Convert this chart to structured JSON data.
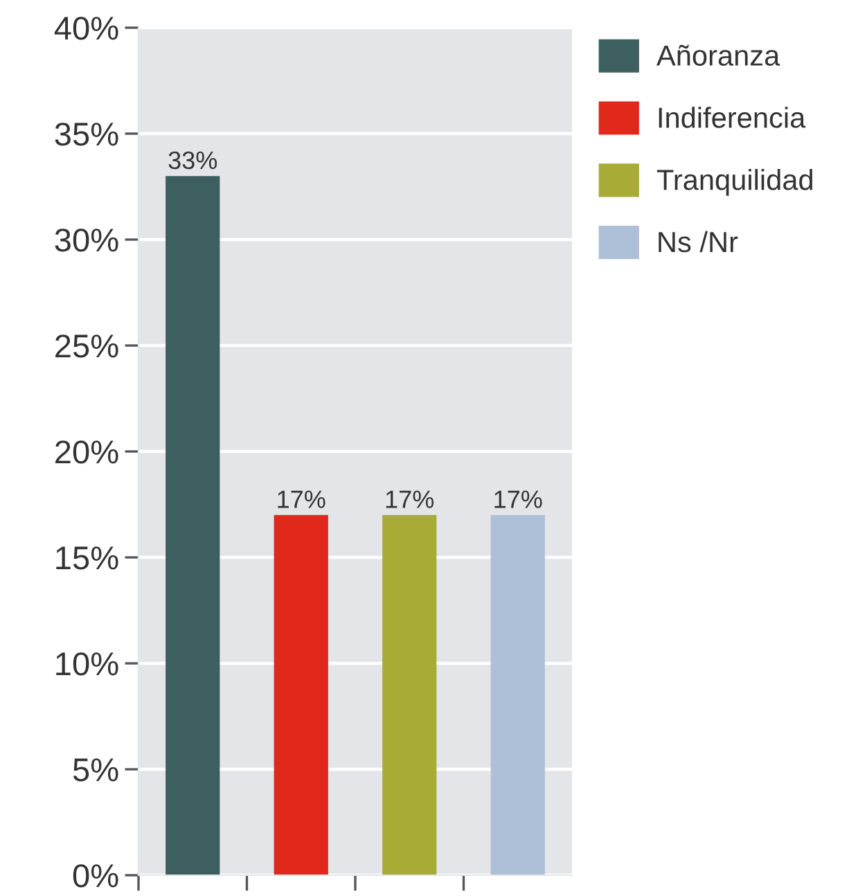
{
  "chart_data": {
    "type": "bar",
    "categories": [
      null,
      null,
      null,
      null
    ],
    "series": [
      {
        "name": "Añoranza",
        "color": "#3e5f5f",
        "values": [
          33,
          null,
          null,
          null
        ],
        "value_labels": [
          "33%",
          null,
          null,
          null
        ]
      },
      {
        "name": "Indiferencia",
        "color": "#e0291b",
        "values": [
          null,
          17,
          null,
          null
        ],
        "value_labels": [
          null,
          "17%",
          null,
          null
        ]
      },
      {
        "name": "Tranquilidad",
        "color": "#a8ac36",
        "values": [
          null,
          null,
          17,
          null
        ],
        "value_labels": [
          null,
          null,
          "17%",
          null
        ]
      },
      {
        "name": "Ns /Nr",
        "color": "#adc0d8",
        "values": [
          null,
          null,
          null,
          17
        ],
        "value_labels": [
          null,
          null,
          null,
          "17%"
        ]
      }
    ],
    "ylim": [
      0,
      40
    ],
    "yticks": [
      {
        "value": 0,
        "label": "0%"
      },
      {
        "value": 5,
        "label": "5%"
      },
      {
        "value": 10,
        "label": "10%"
      },
      {
        "value": 15,
        "label": "15%"
      },
      {
        "value": 20,
        "label": "20%"
      },
      {
        "value": 25,
        "label": "25%"
      },
      {
        "value": 30,
        "label": "30%"
      },
      {
        "value": 35,
        "label": "35%"
      },
      {
        "value": 40,
        "label": "40%"
      }
    ],
    "grid": "y",
    "legend": "top right",
    "tick_labels": "y"
  }
}
